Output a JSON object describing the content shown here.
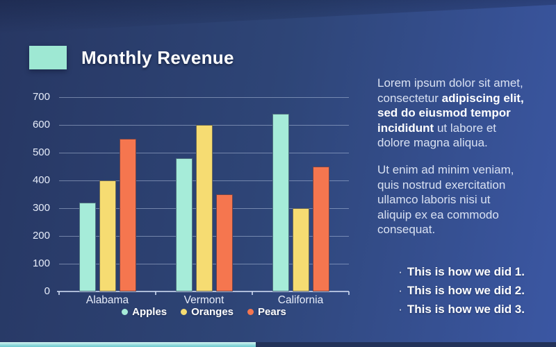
{
  "slide": {
    "title": "Monthly Revenue",
    "paragraphs": [
      {
        "segments": [
          {
            "text": "Lorem ipsum dolor sit amet, consectetur ",
            "bold": false
          },
          {
            "text": "adipiscing elit, sed do eiusmod tempor incididunt",
            "bold": true
          },
          {
            "text": " ut labore et dolore magna aliqua.",
            "bold": false
          }
        ]
      },
      {
        "segments": [
          {
            "text": "Ut enim ad minim veniam, quis nostrud exercitation ullamco laboris nisi ut aliquip ex ea commodo consequat.",
            "bold": false
          }
        ]
      }
    ],
    "bullet_marker": "·",
    "bullets": [
      "This is how we did 1.",
      "This is how we did 2.",
      "This is how we did 3."
    ]
  },
  "chart_data": {
    "type": "bar",
    "title": "Monthly Revenue",
    "categories": [
      "Alabama",
      "Vermont",
      "California"
    ],
    "series": [
      {
        "name": "Apples",
        "color": "#a6ecd9",
        "values": [
          320,
          480,
          640
        ]
      },
      {
        "name": "Oranges",
        "color": "#f6dc72",
        "values": [
          400,
          600,
          300
        ]
      },
      {
        "name": "Pears",
        "color": "#f5764f",
        "values": [
          550,
          350,
          450
        ]
      }
    ],
    "xlabel": "",
    "ylabel": "",
    "ylim": [
      0,
      700
    ],
    "yticks": [
      0,
      100,
      200,
      300,
      400,
      500,
      600,
      700
    ],
    "grid": true,
    "legend_position": "bottom"
  },
  "colors": {
    "background_left": "#273763",
    "background_right": "#3b57a3",
    "title_swatch": "#9ee8d3",
    "gridline": "rgba(205,218,242,0.45)",
    "text_regular": "#d9e1f2",
    "text_bold": "#ffffff",
    "bottom_strip_teal": "#7fd2d6",
    "bottom_strip_navy": "#223259"
  }
}
